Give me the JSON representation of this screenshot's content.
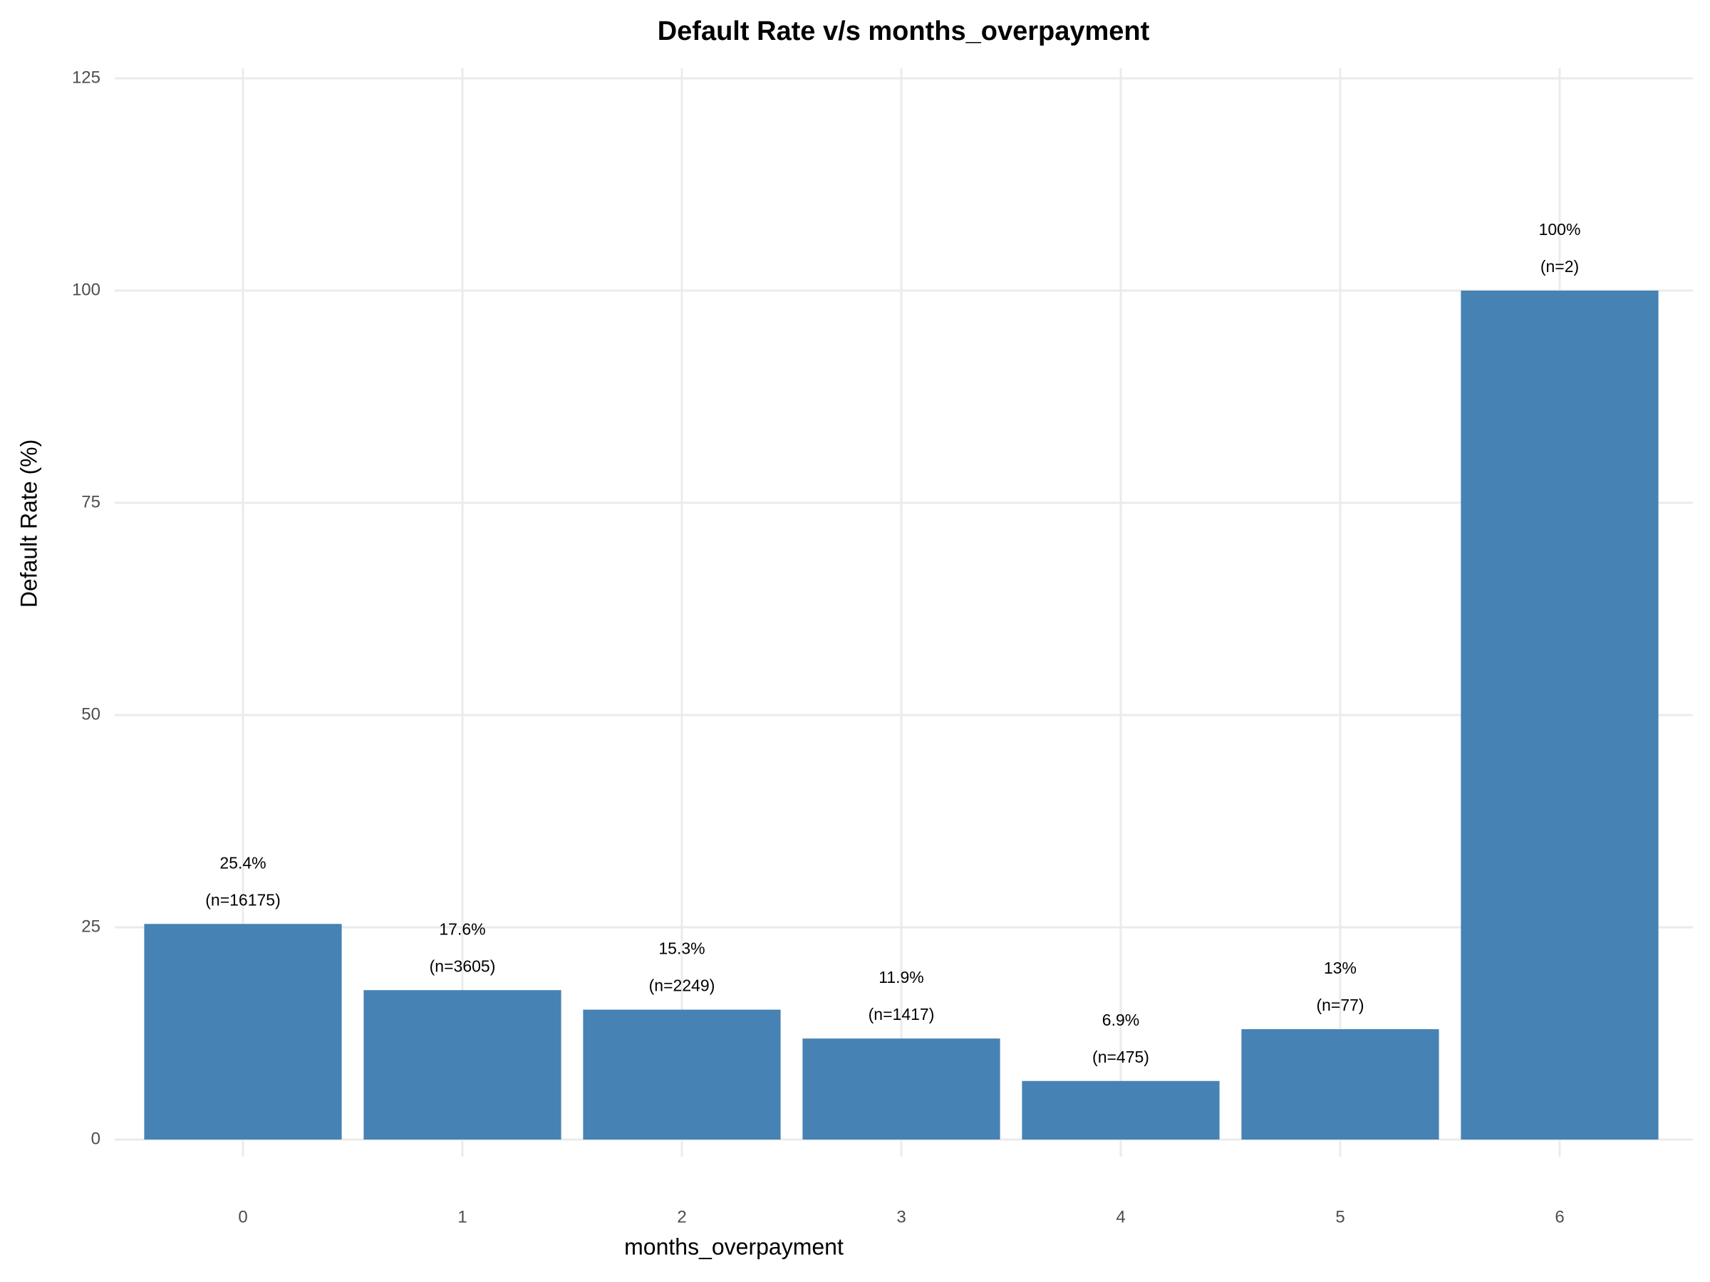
{
  "chart_data": {
    "type": "bar",
    "title": "Default Rate v/s months_overpayment",
    "x_label": "months_overpayment",
    "y_label": "Default Rate (%)",
    "categories": [
      "0",
      "1",
      "2",
      "3",
      "4",
      "5",
      "6"
    ],
    "values": [
      25.4,
      17.6,
      15.3,
      11.9,
      6.9,
      13,
      100
    ],
    "value_labels": [
      "25.4%",
      "17.6%",
      "15.3%",
      "11.9%",
      "6.9%",
      "13%",
      "100%"
    ],
    "count_labels": [
      "(n=16175)",
      "(n=3605)",
      "(n=2249)",
      "(n=1417)",
      "(n=475)",
      "(n=77)",
      "(n=2)"
    ],
    "color": "#4682b4",
    "ylim": [
      0,
      125
    ],
    "yticks": [
      0,
      25,
      50,
      75,
      100,
      125
    ],
    "grid": true
  }
}
